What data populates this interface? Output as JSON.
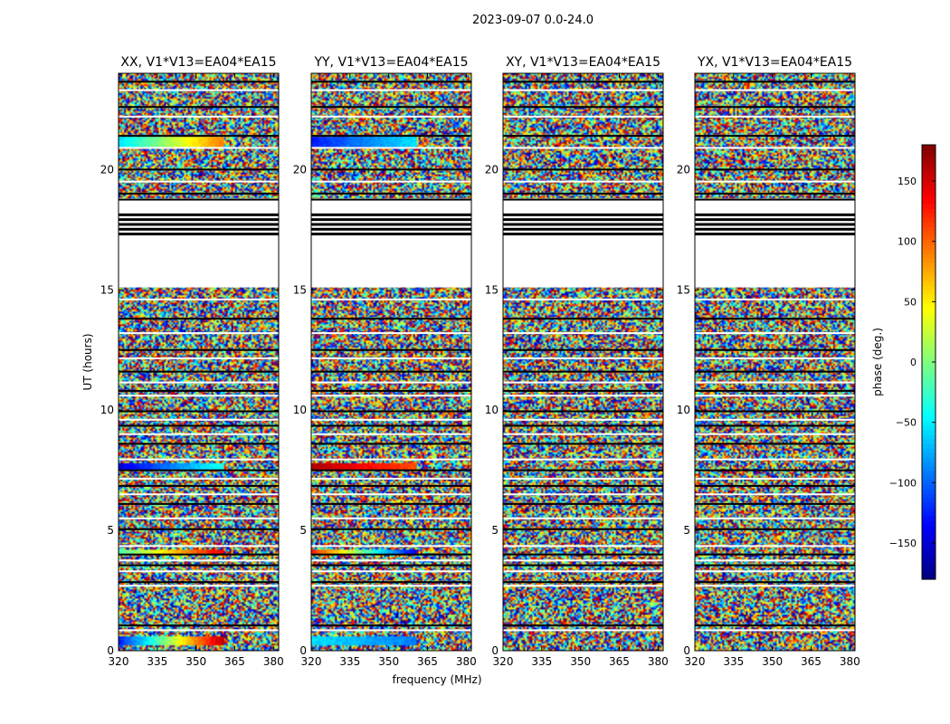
{
  "suptitle": "2023-09-07 0.0-24.0",
  "chart_data": {
    "type": "heatmap",
    "xlabel": "frequency (MHz)",
    "ylabel": "UT (hours)",
    "xlim": [
      320,
      382
    ],
    "ylim": [
      0,
      24
    ],
    "x_ticks": [
      320,
      335,
      350,
      365,
      380
    ],
    "y_ticks": [
      0,
      5,
      10,
      15,
      20
    ],
    "panels": [
      {
        "title": "XX, V1*V13=EA04*EA15"
      },
      {
        "title": "YY, V1*V13=EA04*EA15"
      },
      {
        "title": "XY, V1*V13=EA04*EA15"
      },
      {
        "title": "YX, V1*V13=EA04*EA15"
      }
    ],
    "colorbar": {
      "label": "phase (deg.)",
      "range": [
        -180,
        180
      ],
      "ticks": [
        -150,
        -100,
        -50,
        0,
        50,
        100,
        150
      ],
      "colormap": "jet"
    },
    "flagged_ut_ranges": [
      [
        15.1,
        18.8
      ]
    ],
    "flagged_ut_lines": [
      0.85,
      1.05,
      2.7,
      2.85,
      3.3,
      3.55,
      3.75,
      4.0,
      4.35,
      5.05,
      5.5,
      6.1,
      6.5,
      6.85,
      7.15,
      7.5,
      7.95,
      8.6,
      9.0,
      9.35,
      9.6,
      9.95,
      10.6,
      10.8,
      11.15,
      11.6,
      12.15,
      12.5,
      13.2,
      13.8,
      14.6,
      19.0,
      19.5,
      20.0,
      20.9,
      21.4,
      22.2,
      22.6,
      23.3,
      23.65
    ]
  }
}
